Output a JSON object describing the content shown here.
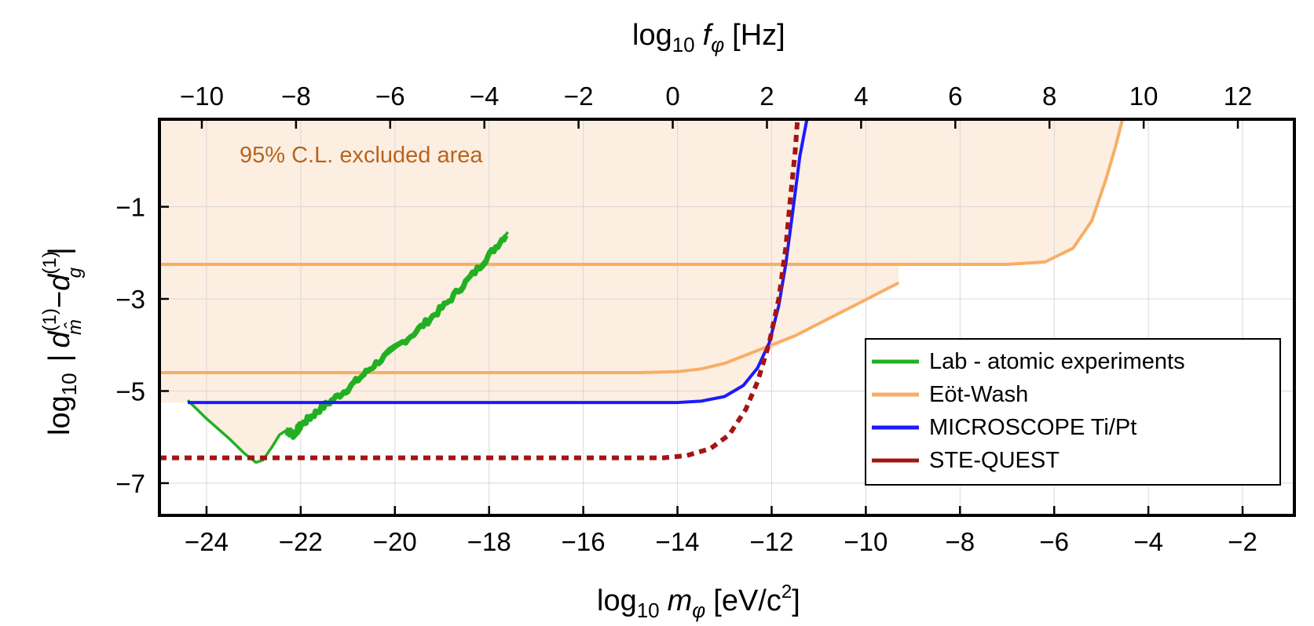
{
  "chart_data": {
    "type": "line",
    "xlabel": {
      "prefix": "log",
      "sub": "10",
      "var": "m",
      "varsub": "φ",
      "unit": "[eV/c",
      "unit_sup": "2",
      "unit_end": "]"
    },
    "x2label": {
      "prefix": "log",
      "sub": "10",
      "var": "f",
      "varsub": "φ",
      "unit": "[Hz]"
    },
    "ylabel": {
      "prefix": "log",
      "sub": "10",
      "bar_left": "|",
      "t1": "d",
      "t1_sup": "(1)",
      "t1_sub": "m̂",
      "minus": "−",
      "t2": "d",
      "t2_sup": "(1)",
      "t2_sub": "g",
      "bar_right": "|"
    },
    "xlim": [
      -25,
      -0.9
    ],
    "x2lim": [
      -10.9,
      13.2
    ],
    "ylim": [
      -7.7,
      0.9
    ],
    "xticks": [
      -24,
      -22,
      -20,
      -18,
      -16,
      -14,
      -12,
      -10,
      -8,
      -6,
      -4,
      -2
    ],
    "xtick_labels": [
      "−24",
      "−22",
      "−20",
      "−18",
      "−16",
      "−14",
      "−12",
      "−10",
      "−8",
      "−6",
      "−4",
      "−2"
    ],
    "x2ticks": [
      -10,
      -8,
      -6,
      -4,
      -2,
      0,
      2,
      4,
      6,
      8,
      10,
      12
    ],
    "x2tick_labels": [
      "−10",
      "−8",
      "−6",
      "−4",
      "−2",
      "0",
      "2",
      "4",
      "6",
      "8",
      "10",
      "12"
    ],
    "yticks": [
      -1,
      -3,
      -5,
      -7
    ],
    "ytick_labels": [
      "−1",
      "−3",
      "−5",
      "−7"
    ],
    "grid": true,
    "annotation": {
      "text": "95% C.L. excluded area",
      "color": "#b8651c"
    },
    "excluded_fill": "#fdeee2",
    "legend_position": "bottom-right",
    "series": [
      {
        "name": "Lab - atomic experiments",
        "color": "#22b022",
        "style": "solid",
        "noisy": true,
        "points": [
          [
            -24.4,
            -5.2
          ],
          [
            -24.0,
            -5.6
          ],
          [
            -23.5,
            -6.05
          ],
          [
            -23.2,
            -6.35
          ],
          [
            -22.95,
            -6.55
          ],
          [
            -22.8,
            -6.5
          ],
          [
            -22.6,
            -6.2
          ],
          [
            -22.45,
            -5.95
          ],
          [
            -22.3,
            -5.85
          ],
          [
            -22.15,
            -5.95
          ],
          [
            -22.0,
            -5.75
          ],
          [
            -21.6,
            -5.4
          ],
          [
            -21.0,
            -4.95
          ],
          [
            -20.4,
            -4.4
          ],
          [
            -19.6,
            -3.75
          ],
          [
            -18.9,
            -3.1
          ],
          [
            -18.2,
            -2.3
          ],
          [
            -17.6,
            -1.55
          ]
        ]
      },
      {
        "name": "Eöt-Wash",
        "color": "#f8ae66",
        "style": "solid",
        "noisy": false,
        "segments": [
          [
            [
              -25,
              -2.25
            ],
            [
              -7,
              -2.25
            ],
            [
              -6.2,
              -2.2
            ],
            [
              -5.6,
              -1.9
            ],
            [
              -5.2,
              -1.3
            ],
            [
              -4.9,
              -0.4
            ],
            [
              -4.7,
              0.3
            ],
            [
              -4.55,
              0.9
            ]
          ],
          [
            [
              -25,
              -4.6
            ],
            [
              -14.8,
              -4.6
            ],
            [
              -14.0,
              -4.58
            ],
            [
              -13.5,
              -4.52
            ],
            [
              -13.0,
              -4.4
            ],
            [
              -12.5,
              -4.2
            ],
            [
              -12.0,
              -4.0
            ],
            [
              -11.5,
              -3.8
            ],
            [
              -9.3,
              -2.65
            ]
          ]
        ]
      },
      {
        "name": "MICROSCOPE Ti/Pt",
        "color": "#1a1aff",
        "style": "solid",
        "noisy": false,
        "points": [
          [
            -24.4,
            -5.25
          ],
          [
            -14,
            -5.25
          ],
          [
            -13.5,
            -5.22
          ],
          [
            -13.0,
            -5.12
          ],
          [
            -12.6,
            -4.88
          ],
          [
            -12.3,
            -4.5
          ],
          [
            -12.05,
            -3.95
          ],
          [
            -11.85,
            -3.15
          ],
          [
            -11.7,
            -2.25
          ],
          [
            -11.55,
            -1.1
          ],
          [
            -11.4,
            0.1
          ],
          [
            -11.25,
            0.9
          ]
        ]
      },
      {
        "name": "STE-QUEST",
        "color": "#a31515",
        "style": "dashed",
        "noisy": false,
        "points": [
          [
            -25,
            -6.45
          ],
          [
            -14.3,
            -6.45
          ],
          [
            -13.8,
            -6.4
          ],
          [
            -13.3,
            -6.25
          ],
          [
            -12.9,
            -5.95
          ],
          [
            -12.55,
            -5.4
          ],
          [
            -12.3,
            -4.8
          ],
          [
            -12.05,
            -3.95
          ],
          [
            -11.85,
            -3.0
          ],
          [
            -11.7,
            -1.9
          ],
          [
            -11.6,
            -0.8
          ],
          [
            -11.5,
            0.2
          ],
          [
            -11.45,
            0.9
          ]
        ]
      }
    ],
    "excluded_boundary": [
      [
        -25,
        -5.25
      ],
      [
        -24.4,
        -5.25
      ],
      [
        -24.0,
        -5.6
      ],
      [
        -23.5,
        -6.05
      ],
      [
        -23.2,
        -6.35
      ],
      [
        -22.95,
        -6.55
      ],
      [
        -22.8,
        -6.5
      ],
      [
        -22.6,
        -6.2
      ],
      [
        -22.45,
        -5.95
      ],
      [
        -22.3,
        -5.85
      ],
      [
        -22.15,
        -5.95
      ],
      [
        -22.0,
        -5.75
      ],
      [
        -21.6,
        -5.4
      ],
      [
        -21.4,
        -5.25
      ],
      [
        -14,
        -5.25
      ],
      [
        -13.5,
        -5.22
      ],
      [
        -13.0,
        -5.12
      ],
      [
        -12.6,
        -4.88
      ],
      [
        -12.3,
        -4.5
      ],
      [
        -12.15,
        -4.2
      ],
      [
        -11.5,
        -3.8
      ],
      [
        -9.3,
        -2.65
      ],
      [
        -9.3,
        -2.25
      ],
      [
        -7,
        -2.25
      ],
      [
        -6.2,
        -2.2
      ],
      [
        -5.6,
        -1.9
      ],
      [
        -5.2,
        -1.3
      ],
      [
        -4.9,
        -0.4
      ],
      [
        -4.7,
        0.3
      ],
      [
        -4.55,
        0.9
      ],
      [
        -25,
        0.9
      ]
    ]
  }
}
